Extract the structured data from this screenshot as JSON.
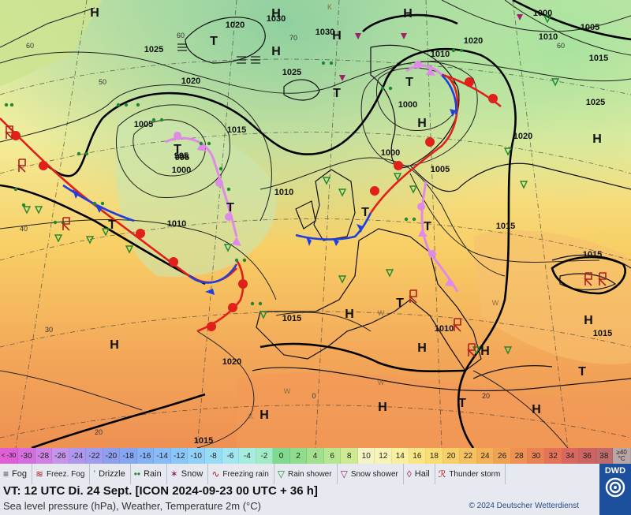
{
  "map": {
    "pressure_labels": [
      {
        "text": "1025"
      },
      {
        "text": "1020"
      },
      {
        "text": "1030"
      },
      {
        "text": "1030"
      },
      {
        "text": "1020"
      },
      {
        "text": "995"
      },
      {
        "text": "1000"
      },
      {
        "text": "1010"
      },
      {
        "text": "1005"
      },
      {
        "text": "1015"
      },
      {
        "text": "1025"
      },
      {
        "text": "1020"
      },
      {
        "text": "1005"
      },
      {
        "text": "1015"
      },
      {
        "text": "995"
      },
      {
        "text": "1000"
      },
      {
        "text": "1010"
      },
      {
        "text": "1000"
      },
      {
        "text": "1005"
      },
      {
        "text": "1010"
      },
      {
        "text": "1015"
      },
      {
        "text": "1010"
      },
      {
        "text": "1020"
      },
      {
        "text": "1015"
      },
      {
        "text": "1015"
      },
      {
        "text": "1020"
      },
      {
        "text": "1015"
      },
      {
        "text": "1015"
      },
      {
        "text": "1025"
      },
      {
        "text": "1000"
      },
      {
        "text": "1010"
      }
    ],
    "centers": [
      {
        "type": "H"
      },
      {
        "type": "H"
      },
      {
        "type": "H"
      },
      {
        "type": "H"
      },
      {
        "type": "H"
      },
      {
        "type": "H"
      },
      {
        "type": "H"
      },
      {
        "type": "H"
      },
      {
        "type": "H"
      },
      {
        "type": "H"
      },
      {
        "type": "H"
      },
      {
        "type": "H"
      },
      {
        "type": "H"
      },
      {
        "type": "H"
      },
      {
        "type": "H"
      },
      {
        "type": "T"
      },
      {
        "type": "T"
      },
      {
        "type": "T"
      },
      {
        "type": "T"
      },
      {
        "type": "T"
      },
      {
        "type": "T"
      },
      {
        "type": "T"
      },
      {
        "type": "T"
      },
      {
        "type": "T"
      },
      {
        "type": "T"
      },
      {
        "type": "T"
      }
    ],
    "minor_labels": [
      {
        "text": "60"
      },
      {
        "text": "50"
      },
      {
        "text": "40"
      },
      {
        "text": "30"
      },
      {
        "text": "20"
      },
      {
        "text": "0"
      },
      {
        "text": "20"
      },
      {
        "text": "K"
      },
      {
        "text": "K"
      },
      {
        "text": "W"
      },
      {
        "text": "W"
      },
      {
        "text": "W"
      },
      {
        "text": "W"
      },
      {
        "text": "60"
      },
      {
        "text": "70"
      },
      {
        "text": "60"
      }
    ]
  },
  "scale": {
    "first_label": "< -30",
    "last_label": "≥40 °C",
    "cells": [
      {
        "label": "-30",
        "color": "#d56fe0"
      },
      {
        "label": "-28",
        "color": "#cf82e4"
      },
      {
        "label": "-26",
        "color": "#c495ea"
      },
      {
        "label": "-24",
        "color": "#ad98ee"
      },
      {
        "label": "-22",
        "color": "#9e9df0"
      },
      {
        "label": "-20",
        "color": "#8f9ff0"
      },
      {
        "label": "-18",
        "color": "#87a6f2"
      },
      {
        "label": "-16",
        "color": "#86b1f5"
      },
      {
        "label": "-14",
        "color": "#87bcf7"
      },
      {
        "label": "-12",
        "color": "#8bc6f8"
      },
      {
        "label": "-10",
        "color": "#8fd1f8"
      },
      {
        "label": "-8",
        "color": "#97dcf5"
      },
      {
        "label": "-6",
        "color": "#a1e6f0"
      },
      {
        "label": "-4",
        "color": "#a6ecdf"
      },
      {
        "label": "-2",
        "color": "#a2ebc7"
      },
      {
        "label": "0",
        "color": "#7fd98f"
      },
      {
        "label": "2",
        "color": "#8fdc8c"
      },
      {
        "label": "4",
        "color": "#a3e08d"
      },
      {
        "label": "6",
        "color": "#b8e58f"
      },
      {
        "label": "8",
        "color": "#cdea93"
      },
      {
        "label": "10",
        "color": "#f5f4c4"
      },
      {
        "label": "12",
        "color": "#f8f3b6"
      },
      {
        "label": "14",
        "color": "#f9ef9e"
      },
      {
        "label": "16",
        "color": "#fae684"
      },
      {
        "label": "18",
        "color": "#f9dc72"
      },
      {
        "label": "20",
        "color": "#f8cf66"
      },
      {
        "label": "22",
        "color": "#f6c15e"
      },
      {
        "label": "24",
        "color": "#f4b158"
      },
      {
        "label": "26",
        "color": "#f1a154"
      },
      {
        "label": "28",
        "color": "#ee9153"
      },
      {
        "label": "30",
        "color": "#ea8254"
      },
      {
        "label": "32",
        "color": "#e37458"
      },
      {
        "label": "34",
        "color": "#d9695e"
      },
      {
        "label": "36",
        "color": "#cc6464"
      },
      {
        "label": "38",
        "color": "#bf6b6b"
      }
    ]
  },
  "legend": [
    {
      "label": "Fog",
      "icon": "fog-icon",
      "glyph": "≡"
    },
    {
      "label": "Freez. Fog",
      "icon": "freezing-fog-icon",
      "glyph": "≋"
    },
    {
      "label": "Drizzle",
      "icon": "drizzle-icon",
      "glyph": "’"
    },
    {
      "label": "Rain",
      "icon": "rain-icon",
      "glyph": "••"
    },
    {
      "label": "Snow",
      "icon": "snow-icon",
      "glyph": "✶"
    },
    {
      "label": "Freezing rain",
      "icon": "freezing-rain-icon",
      "glyph": "∿"
    },
    {
      "label": "Rain shower",
      "icon": "rain-shower-icon",
      "glyph": "▽"
    },
    {
      "label": "Snow shower",
      "icon": "snow-shower-icon",
      "glyph": "▽"
    },
    {
      "label": "Hail",
      "icon": "hail-icon",
      "glyph": "◊"
    },
    {
      "label": "Thunder storm",
      "icon": "thunderstorm-icon",
      "glyph": "ℛ"
    }
  ],
  "info": {
    "vt_line": "VT: 12 UTC Di.  24 Sept. [ICON 2024-09-23  00 UTC + 36 h]",
    "subtitle": "Sea level pressure (hPa), Weather, Temperature 2m (°C)",
    "copyright": "© 2024 Deutscher Wetterdienst",
    "logo_text": "DWD"
  },
  "colors": {
    "cold_front": "#1f3fe0",
    "warm_front": "#e0201a",
    "occlusion": "#e08ae8",
    "high_low": "#111111",
    "isobar_thick": "#000000",
    "logo_bg": "#1c4f9c"
  }
}
